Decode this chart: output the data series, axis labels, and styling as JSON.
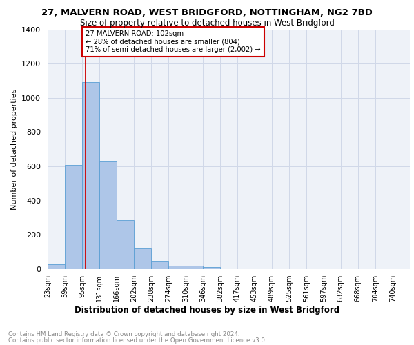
{
  "title1": "27, MALVERN ROAD, WEST BRIDGFORD, NOTTINGHAM, NG2 7BD",
  "title2": "Size of property relative to detached houses in West Bridgford",
  "xlabel": "Distribution of detached houses by size in West Bridgford",
  "ylabel": "Number of detached properties",
  "footnote1": "Contains HM Land Registry data © Crown copyright and database right 2024.",
  "footnote2": "Contains public sector information licensed under the Open Government Licence v3.0.",
  "bin_labels": [
    "23sqm",
    "59sqm",
    "95sqm",
    "131sqm",
    "166sqm",
    "202sqm",
    "238sqm",
    "274sqm",
    "310sqm",
    "346sqm",
    "382sqm",
    "417sqm",
    "453sqm",
    "489sqm",
    "525sqm",
    "561sqm",
    "597sqm",
    "632sqm",
    "668sqm",
    "704sqm",
    "740sqm"
  ],
  "bar_heights": [
    30,
    610,
    1090,
    630,
    285,
    120,
    47,
    22,
    22,
    12,
    0,
    0,
    0,
    0,
    0,
    0,
    0,
    0,
    0,
    0
  ],
  "bar_color": "#aec6e8",
  "bar_edge_color": "#5a9fd4",
  "grid_color": "#d0d8e8",
  "bg_color": "#eef2f8",
  "annotation_line1": "27 MALVERN ROAD: 102sqm",
  "annotation_line2": "← 28% of detached houses are smaller (804)",
  "annotation_line3": "71% of semi-detached houses are larger (2,002) →",
  "annotation_box_color": "#ffffff",
  "annotation_box_edge_color": "#cc0000",
  "vline_x": 102,
  "vline_color": "#cc0000",
  "ylim": [
    0,
    1400
  ],
  "bin_edges": [
    23,
    59,
    95,
    131,
    166,
    202,
    238,
    274,
    310,
    346,
    382,
    417,
    453,
    489,
    525,
    561,
    597,
    632,
    668,
    704,
    740
  ]
}
